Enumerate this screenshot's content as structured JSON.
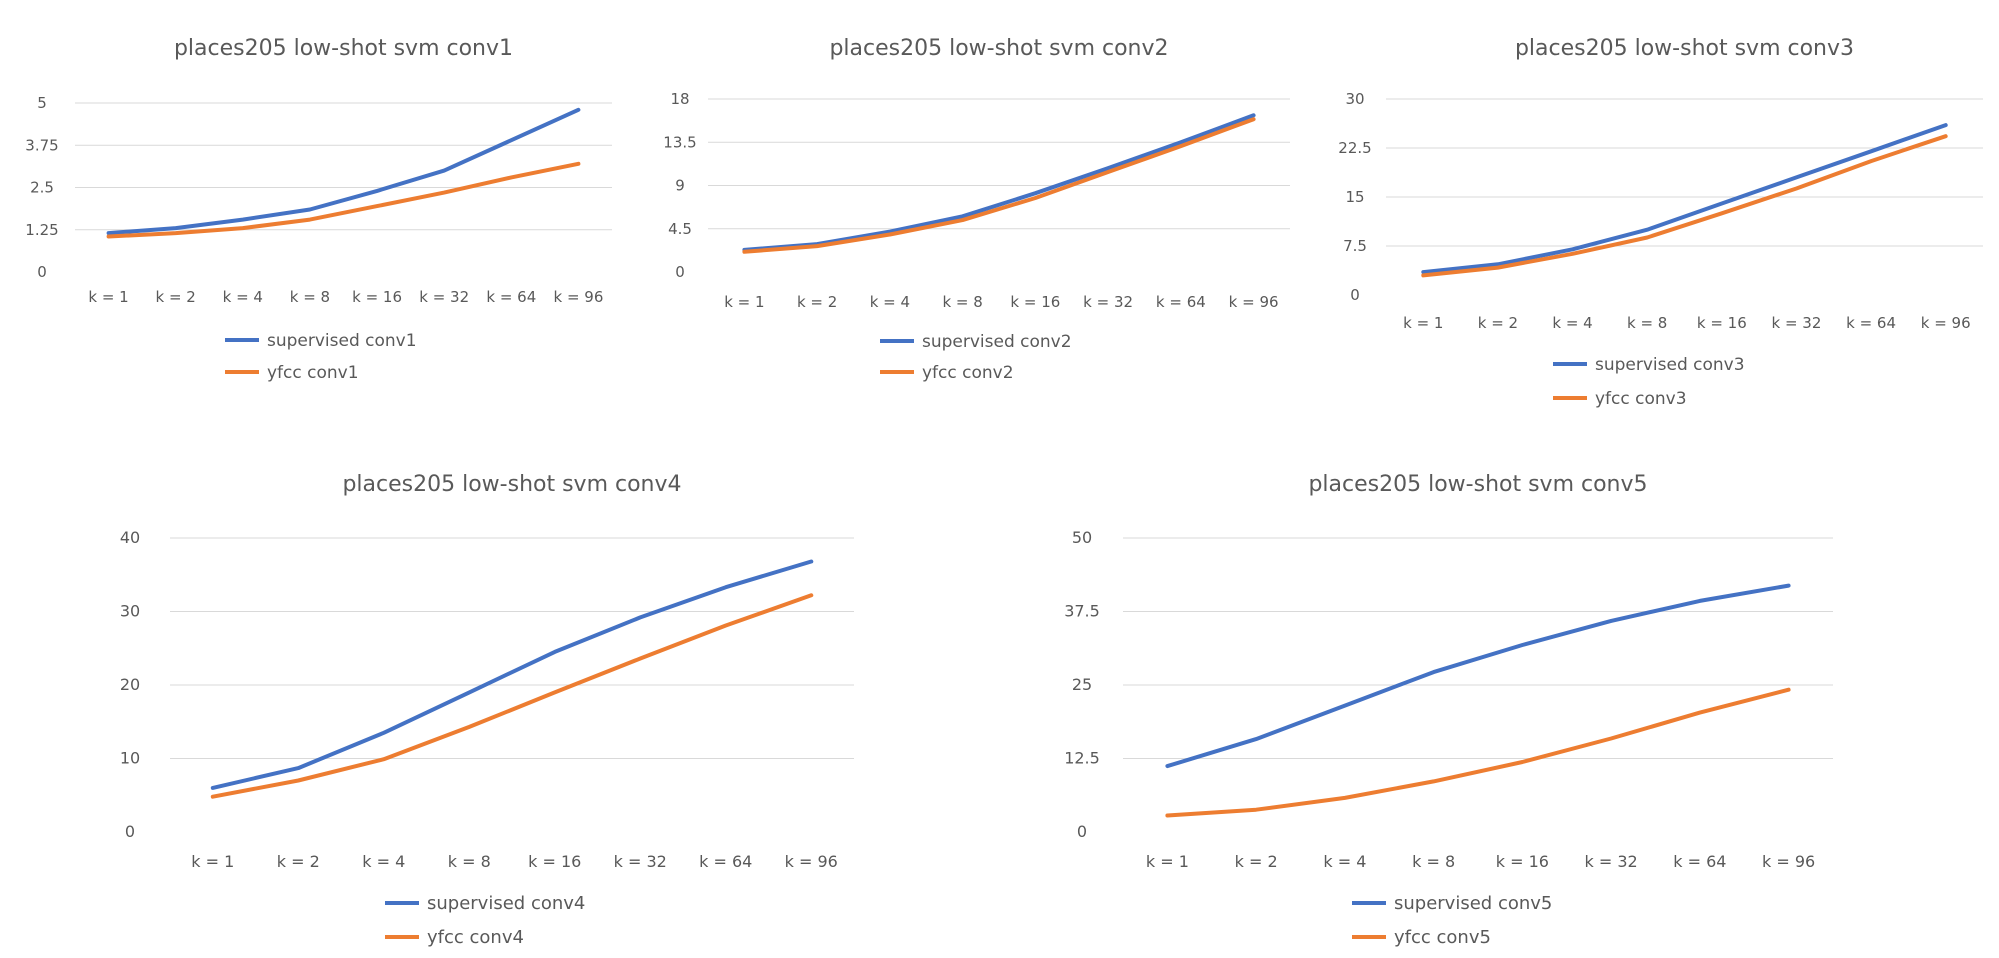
{
  "colors": {
    "supervised": "#4472C4",
    "yfcc": "#ED7D31",
    "grid": "#D9D9D9",
    "text": "#595959"
  },
  "chart_data": [
    {
      "type": "line",
      "title": "places205 low-shot svm conv1",
      "categories": [
        "k = 1",
        "k = 2",
        "k = 4",
        "k = 8",
        "k = 16",
        "k = 32",
        "k = 64",
        "k = 96"
      ],
      "ylim": [
        0,
        5
      ],
      "yticks": [
        "0",
        "1.25",
        "2.5",
        "3.75",
        "5"
      ],
      "grid": true,
      "legend_position": "bottom",
      "series": [
        {
          "name": "supervised conv1",
          "color": "#4472C4",
          "values": [
            1.15,
            1.3,
            1.55,
            1.85,
            2.4,
            3.0,
            3.9,
            4.8
          ]
        },
        {
          "name": "yfcc conv1",
          "color": "#ED7D31",
          "values": [
            1.05,
            1.15,
            1.3,
            1.55,
            1.95,
            2.35,
            2.8,
            3.2
          ]
        }
      ]
    },
    {
      "type": "line",
      "title": "places205 low-shot svm conv2",
      "categories": [
        "k = 1",
        "k = 2",
        "k = 4",
        "k = 8",
        "k = 16",
        "k = 32",
        "k = 64",
        "k = 96"
      ],
      "ylim": [
        0,
        18
      ],
      "yticks": [
        "0",
        "4.5",
        "9",
        "13.5",
        "18"
      ],
      "grid": true,
      "legend_position": "bottom",
      "series": [
        {
          "name": "supervised conv2",
          "color": "#4472C4",
          "values": [
            2.3,
            2.9,
            4.2,
            5.8,
            8.2,
            10.8,
            13.5,
            16.3
          ]
        },
        {
          "name": "yfcc conv2",
          "color": "#ED7D31",
          "values": [
            2.1,
            2.7,
            3.9,
            5.4,
            7.7,
            10.4,
            13.1,
            15.9
          ]
        }
      ]
    },
    {
      "type": "line",
      "title": "places205 low-shot svm conv3",
      "categories": [
        "k = 1",
        "k = 2",
        "k = 4",
        "k = 8",
        "k = 16",
        "k = 32",
        "k = 64",
        "k = 96"
      ],
      "ylim": [
        0,
        30
      ],
      "yticks": [
        "0",
        "7.5",
        "15",
        "22.5",
        "30"
      ],
      "grid": true,
      "legend_position": "bottom",
      "series": [
        {
          "name": "supervised conv3",
          "color": "#4472C4",
          "values": [
            3.5,
            4.7,
            7.0,
            10.0,
            14.0,
            18.0,
            22.0,
            26.0
          ]
        },
        {
          "name": "yfcc conv3",
          "color": "#ED7D31",
          "values": [
            3.0,
            4.2,
            6.3,
            8.8,
            12.5,
            16.3,
            20.5,
            24.3
          ]
        }
      ]
    },
    {
      "type": "line",
      "title": "places205 low-shot svm conv4",
      "categories": [
        "k = 1",
        "k = 2",
        "k = 4",
        "k = 8",
        "k = 16",
        "k = 32",
        "k = 64",
        "k = 96"
      ],
      "ylim": [
        0,
        40
      ],
      "yticks": [
        "0",
        "10",
        "20",
        "30",
        "40"
      ],
      "grid": true,
      "legend_position": "bottom",
      "series": [
        {
          "name": "supervised conv4",
          "color": "#4472C4",
          "values": [
            6.0,
            8.7,
            13.5,
            19.0,
            24.5,
            29.2,
            33.3,
            36.8
          ]
        },
        {
          "name": "yfcc conv4",
          "color": "#ED7D31",
          "values": [
            4.8,
            7.0,
            9.9,
            14.3,
            19.0,
            23.6,
            28.1,
            32.2
          ]
        }
      ]
    },
    {
      "type": "line",
      "title": "places205 low-shot svm conv5",
      "categories": [
        "k = 1",
        "k = 2",
        "k = 4",
        "k = 8",
        "k = 16",
        "k = 32",
        "k = 64",
        "k = 96"
      ],
      "ylim": [
        0,
        50
      ],
      "yticks": [
        "0",
        "12.5",
        "25",
        "37.5",
        "50"
      ],
      "grid": true,
      "legend_position": "bottom",
      "series": [
        {
          "name": "supervised conv5",
          "color": "#4472C4",
          "values": [
            11.2,
            15.8,
            21.5,
            27.2,
            31.8,
            35.9,
            39.3,
            41.9
          ]
        },
        {
          "name": "yfcc conv5",
          "color": "#ED7D31",
          "values": [
            2.8,
            3.8,
            5.8,
            8.6,
            11.9,
            15.9,
            20.3,
            24.2
          ]
        }
      ]
    }
  ]
}
